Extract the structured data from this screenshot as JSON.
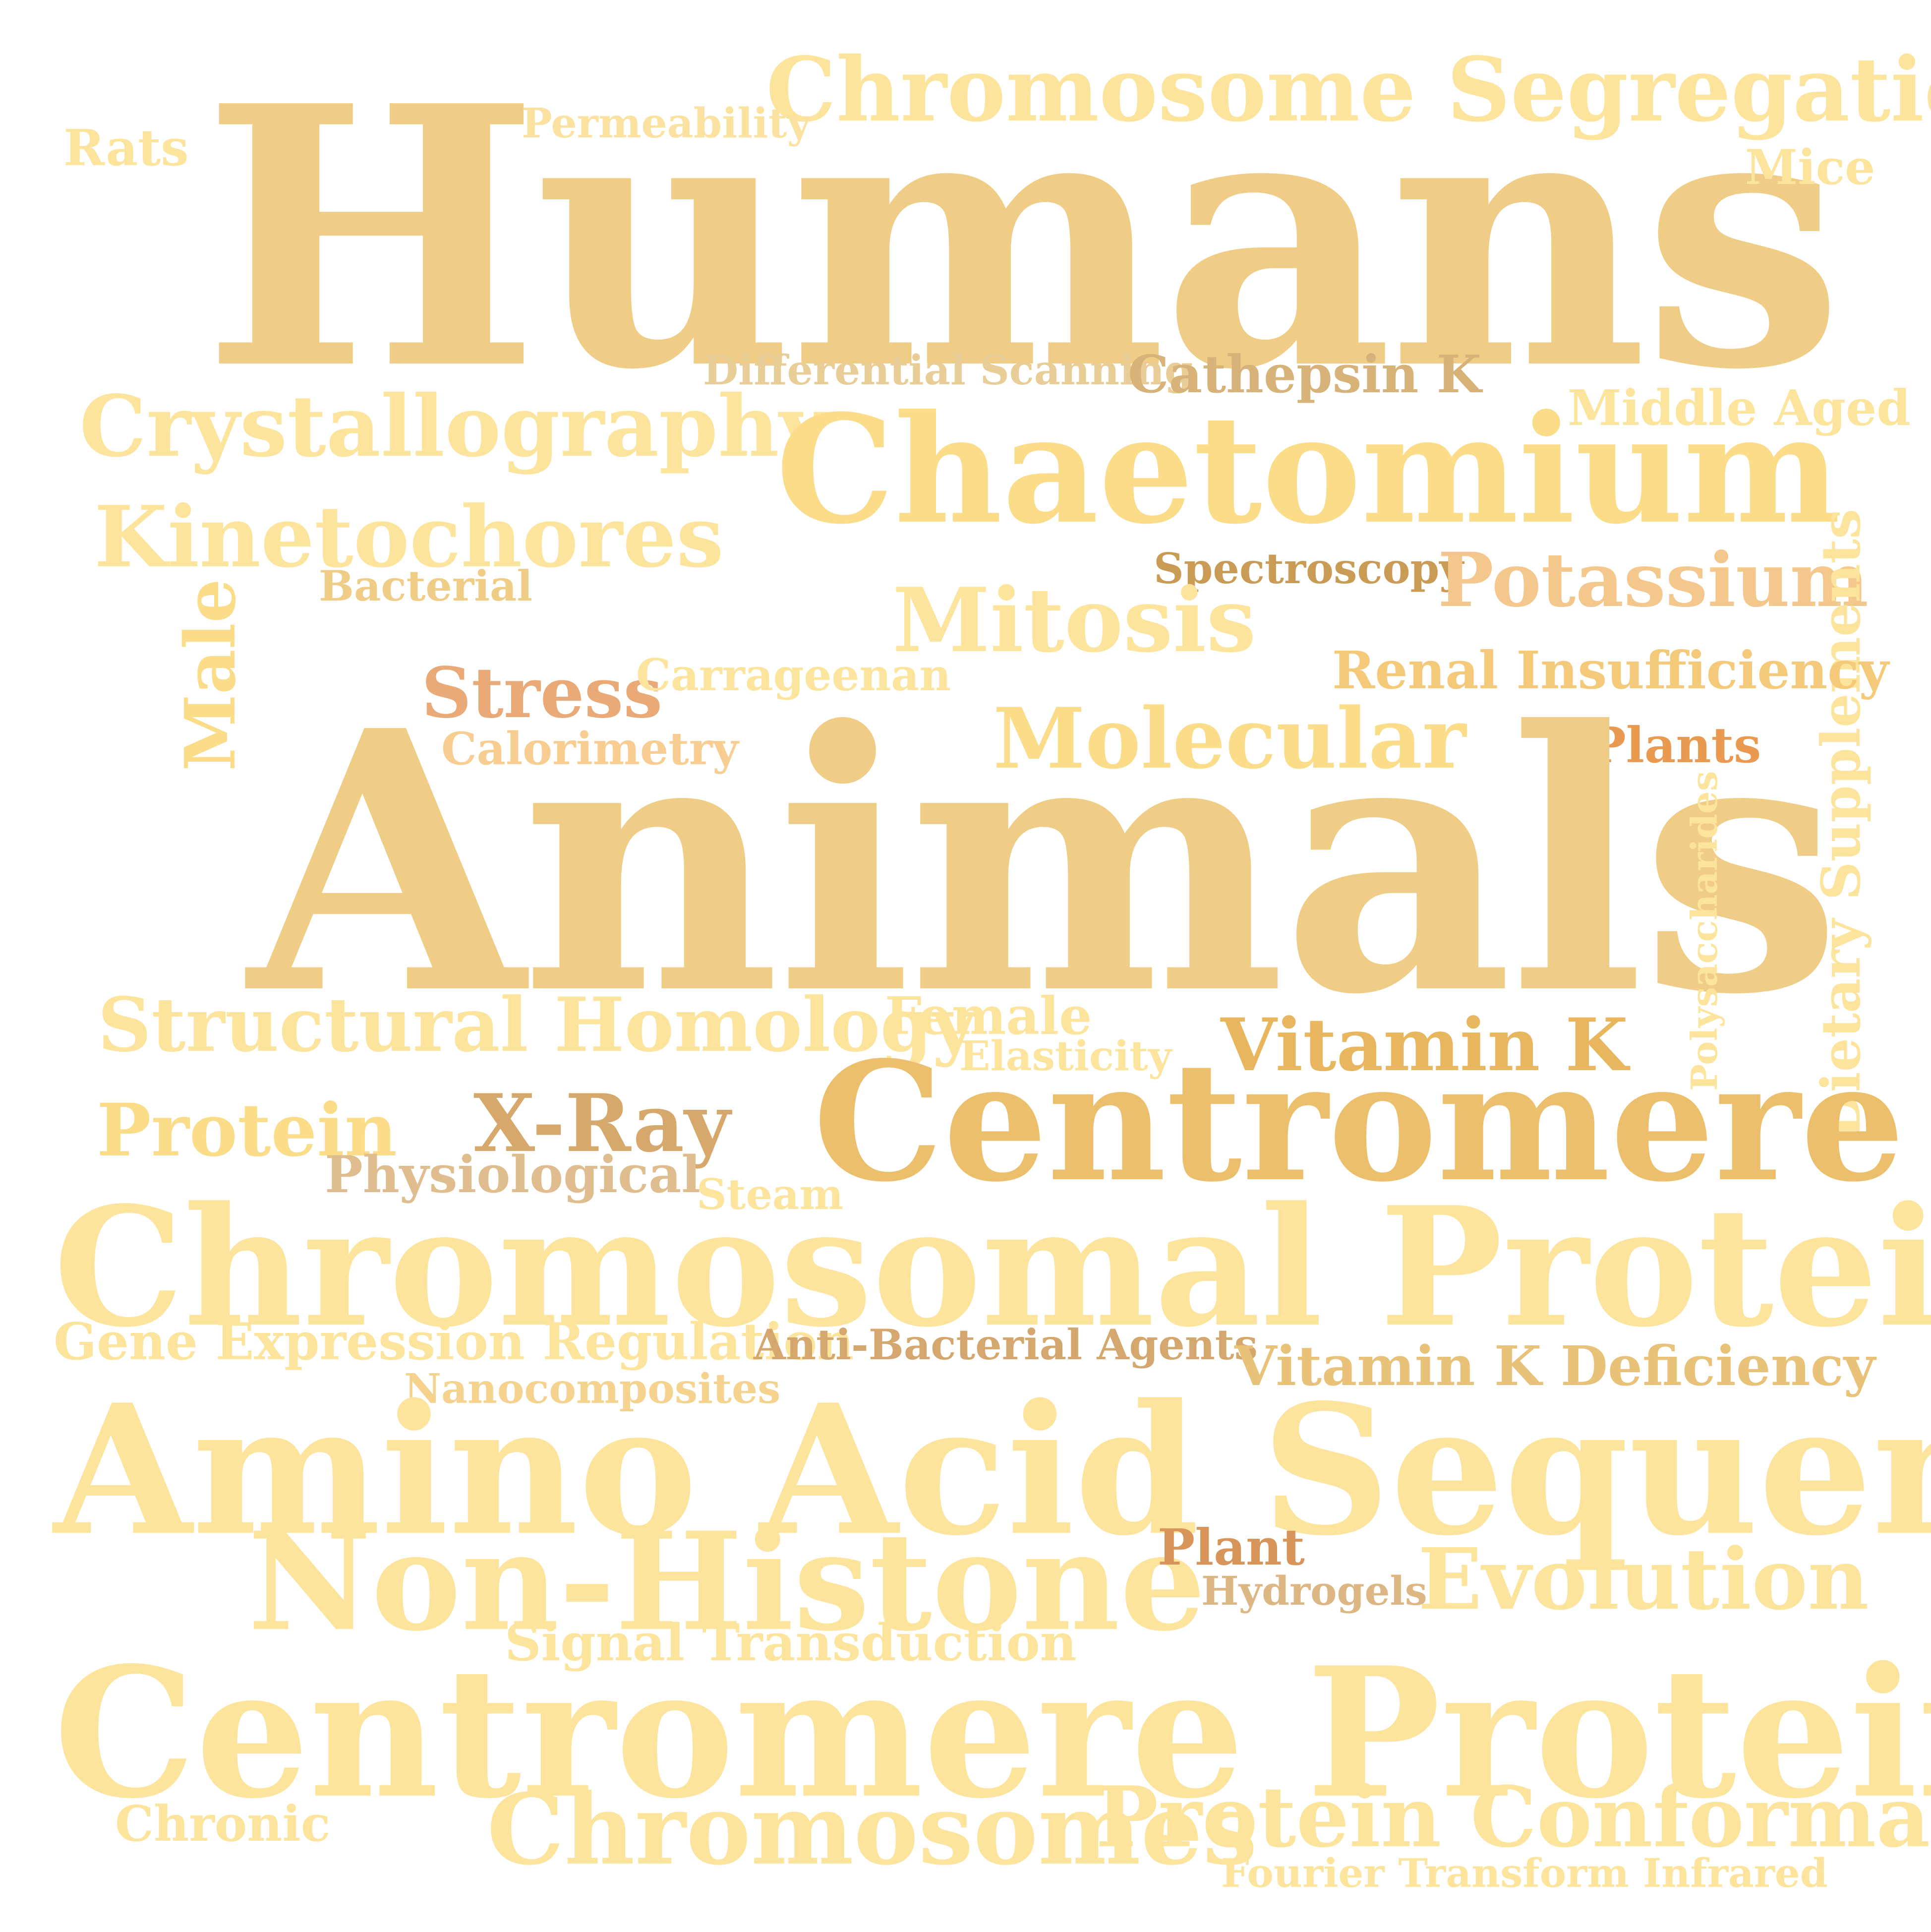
{
  "words": {
    "humans": {
      "text": "Humans",
      "color": "#f0cd86"
    },
    "animals": {
      "text": "Animals",
      "color": "#f0cd86"
    },
    "chrom_seg": {
      "text": "Chromosome Segregation",
      "color": "#fde49c"
    },
    "rats": {
      "text": "Rats",
      "color": "#fde49c"
    },
    "permeability": {
      "text": "Permeability",
      "color": "#fbe2a0"
    },
    "mice": {
      "text": "Mice",
      "color": "#fde49c"
    },
    "diff_scan": {
      "text": "Differential Scanning",
      "color": "#e8cd96"
    },
    "cathepsin_k": {
      "text": "Cathepsin K",
      "color": "#d7b37a"
    },
    "middle_aged": {
      "text": "Middle Aged",
      "color": "#fde49c"
    },
    "crystallography": {
      "text": "Crystallography",
      "color": "#fde49c"
    },
    "chaetomium": {
      "text": "Chaetomium",
      "color": "#fbdc89"
    },
    "kinetochores": {
      "text": "Kinetochores",
      "color": "#fde49c"
    },
    "bacterial": {
      "text": "Bacterial",
      "color": "#f0cd86"
    },
    "spectroscopy": {
      "text": "Spectroscopy",
      "color": "#c99b55"
    },
    "potassium": {
      "text": "Potassium",
      "color": "#f4c78c"
    },
    "dietary": {
      "text": "Dietary Supplements",
      "color": "#fde49c"
    },
    "mitosis": {
      "text": "Mitosis",
      "color": "#fde49c"
    },
    "male": {
      "text": "Male",
      "color": "#fbdc89"
    },
    "stress": {
      "text": "Stress",
      "color": "#e9aa78"
    },
    "carrageenan": {
      "text": "Carrageenan",
      "color": "#fde49c"
    },
    "renal": {
      "text": "Renal Insufficiency",
      "color": "#f5c97a"
    },
    "calorimetry": {
      "text": "Calorimetry",
      "color": "#f7cd92"
    },
    "molecular": {
      "text": "Molecular",
      "color": "#fbdc89"
    },
    "plants": {
      "text": "Plants",
      "color": "#ea9a50"
    },
    "polysaccharides": {
      "text": "Polysaccharides",
      "color": "#fde49c"
    },
    "struct_homol": {
      "text": "Structural Homology",
      "color": "#fde49c"
    },
    "female": {
      "text": "Female",
      "color": "#fde49c"
    },
    "elasticity": {
      "text": "Elasticity",
      "color": "#fde49c"
    },
    "vitamin_k": {
      "text": "Vitamin K",
      "color": "#e8b65e"
    },
    "centromere": {
      "text": "Centromere",
      "color": "#ebbf6c"
    },
    "protein": {
      "text": "Protein",
      "color": "#fbdc89"
    },
    "xray": {
      "text": "X-Ray",
      "color": "#d6a86b"
    },
    "physiological": {
      "text": "Physiological",
      "color": "#e0bd8f"
    },
    "steam": {
      "text": "Steam",
      "color": "#fde49c"
    },
    "chrom_prot": {
      "text": "Chromosomal Proteins",
      "color": "#fde49c"
    },
    "gene_expr": {
      "text": "Gene Expression Regulation",
      "color": "#fde49c"
    },
    "anti_bact": {
      "text": "Anti-Bacterial Agents",
      "color": "#d3a76e"
    },
    "vitk_def": {
      "text": "Vitamin K Deficiency",
      "color": "#e9c27a"
    },
    "nanocomposites": {
      "text": "Nanocomposites",
      "color": "#f5d28e"
    },
    "amino": {
      "text": "Amino Acid Sequence",
      "color": "#fde49c"
    },
    "non_histone": {
      "text": "Non-Histone",
      "color": "#fde49c"
    },
    "plant": {
      "text": "Plant",
      "color": "#d8955a"
    },
    "hydrogels": {
      "text": "Hydrogels",
      "color": "#dcb683"
    },
    "evolution": {
      "text": "Evolution",
      "color": "#fde49c"
    },
    "signal": {
      "text": "Signal Transduction",
      "color": "#fde49c"
    },
    "centro_prot_a": {
      "text": "Centromere Protein A",
      "color": "#fde49c"
    },
    "chronic": {
      "text": "Chronic",
      "color": "#fde49c"
    },
    "chromosomes": {
      "text": "Chromosomes",
      "color": "#fde49c"
    },
    "prot_conf": {
      "text": "Protein Conformation",
      "color": "#fde49c"
    },
    "fourier": {
      "text": "Fourier Transform Infrared",
      "color": "#fde49c"
    }
  }
}
